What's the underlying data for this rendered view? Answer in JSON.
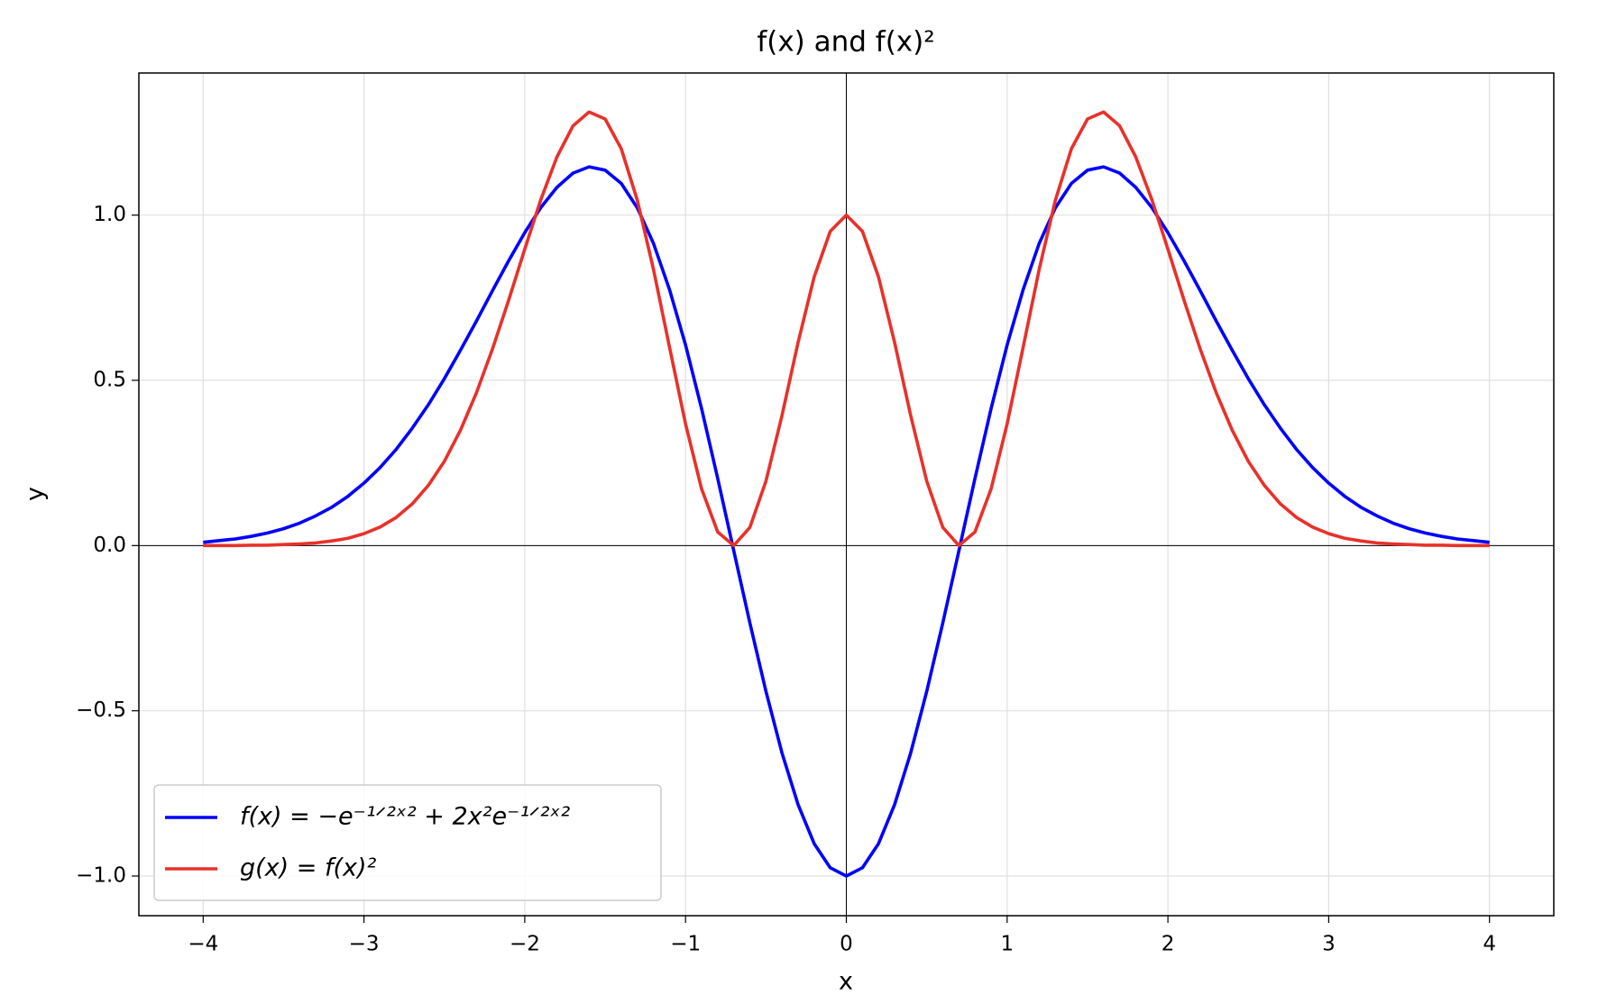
{
  "chart_data": {
    "type": "line",
    "title": "f(x) and f(x)²",
    "x_label": "x",
    "y_label": "y",
    "x": [
      -4,
      -3.9,
      -3.8,
      -3.7,
      -3.6,
      -3.5,
      -3.4,
      -3.3,
      -3.2,
      -3.1,
      -3,
      -2.9,
      -2.8,
      -2.7,
      -2.6,
      -2.5,
      -2.4,
      -2.3,
      -2.2,
      -2.1,
      -2,
      -1.9,
      -1.8,
      -1.7,
      -1.6,
      -1.5,
      -1.4,
      -1.3,
      -1.2,
      -1.1,
      -1,
      -0.9,
      -0.8,
      -0.7,
      -0.6,
      -0.5,
      -0.4,
      -0.3,
      -0.2,
      -0.1,
      0,
      0.1,
      0.2,
      0.3,
      0.4,
      0.5,
      0.6,
      0.7,
      0.8,
      0.9,
      1,
      1.1,
      1.2,
      1.3,
      1.4,
      1.5,
      1.6,
      1.7,
      1.8,
      1.9,
      2,
      2.1,
      2.2,
      2.3,
      2.4,
      2.5,
      2.6,
      2.7,
      2.8,
      2.9,
      3,
      3.1,
      3.2,
      3.3,
      3.4,
      3.5,
      3.6,
      3.7,
      3.8,
      3.9,
      4
    ],
    "series": [
      {
        "name": "f(x) = −e⁻¹ᐟ²ˣ² + 2x²e⁻¹ᐟ²ˣ²",
        "color": "#0000ff",
        "values": [
          0.01,
          0.015,
          0.02,
          0.028,
          0.038,
          0.051,
          0.068,
          0.09,
          0.116,
          0.149,
          0.189,
          0.236,
          0.291,
          0.355,
          0.426,
          0.505,
          0.591,
          0.68,
          0.772,
          0.862,
          0.947,
          1.023,
          1.084,
          1.127,
          1.146,
          1.136,
          1.096,
          1.022,
          0.915,
          0.775,
          0.607,
          0.414,
          0.203,
          -0.016,
          -0.234,
          -0.441,
          -0.628,
          -0.784,
          -0.902,
          -0.975,
          -1,
          -0.975,
          -0.902,
          -0.784,
          -0.628,
          -0.441,
          -0.234,
          -0.016,
          0.203,
          0.414,
          0.607,
          0.775,
          0.915,
          1.022,
          1.096,
          1.136,
          1.146,
          1.127,
          1.084,
          1.023,
          0.947,
          0.862,
          0.772,
          0.68,
          0.591,
          0.505,
          0.426,
          0.355,
          0.291,
          0.236,
          0.189,
          0.149,
          0.116,
          0.09,
          0.068,
          0.051,
          0.038,
          0.028,
          0.02,
          0.015,
          0.01
        ]
      },
      {
        "name": "g(x) = f(x)²",
        "color": "#e8312a",
        "values": [
          0.0,
          0.0,
          0.0,
          0.001,
          0.001,
          0.003,
          0.005,
          0.008,
          0.014,
          0.022,
          0.036,
          0.056,
          0.085,
          0.126,
          0.182,
          0.255,
          0.349,
          0.463,
          0.596,
          0.743,
          0.897,
          1.047,
          1.176,
          1.27,
          1.312,
          1.291,
          1.201,
          1.045,
          0.837,
          0.601,
          0.368,
          0.171,
          0.041,
          0.0,
          0.055,
          0.195,
          0.394,
          0.615,
          0.813,
          0.951,
          1,
          0.951,
          0.813,
          0.615,
          0.394,
          0.195,
          0.055,
          0.0,
          0.041,
          0.171,
          0.368,
          0.601,
          0.837,
          1.045,
          1.201,
          1.291,
          1.312,
          1.27,
          1.176,
          1.047,
          0.897,
          0.743,
          0.596,
          0.463,
          0.349,
          0.255,
          0.182,
          0.126,
          0.085,
          0.056,
          0.036,
          0.022,
          0.014,
          0.008,
          0.005,
          0.003,
          0.001,
          0.001,
          0.0,
          0.0,
          0.0
        ]
      }
    ],
    "xlim": [
      -4.4,
      4.4
    ],
    "ylim": [
      -1.12,
      1.43
    ],
    "xticks": [
      {
        "value": -4,
        "label": "−4"
      },
      {
        "value": -3,
        "label": "−3"
      },
      {
        "value": -2,
        "label": "−2"
      },
      {
        "value": -1,
        "label": "−1"
      },
      0,
      1,
      2,
      3,
      4
    ],
    "yticks": [
      {
        "value": -1,
        "label": "−1.0"
      },
      {
        "value": -0.5,
        "label": "−0.5"
      },
      {
        "value": 0,
        "label": "0.0"
      },
      0.5,
      {
        "value": 1,
        "label": "1.0"
      }
    ],
    "grid": true,
    "zero_lines": true,
    "legend": "lower left"
  }
}
